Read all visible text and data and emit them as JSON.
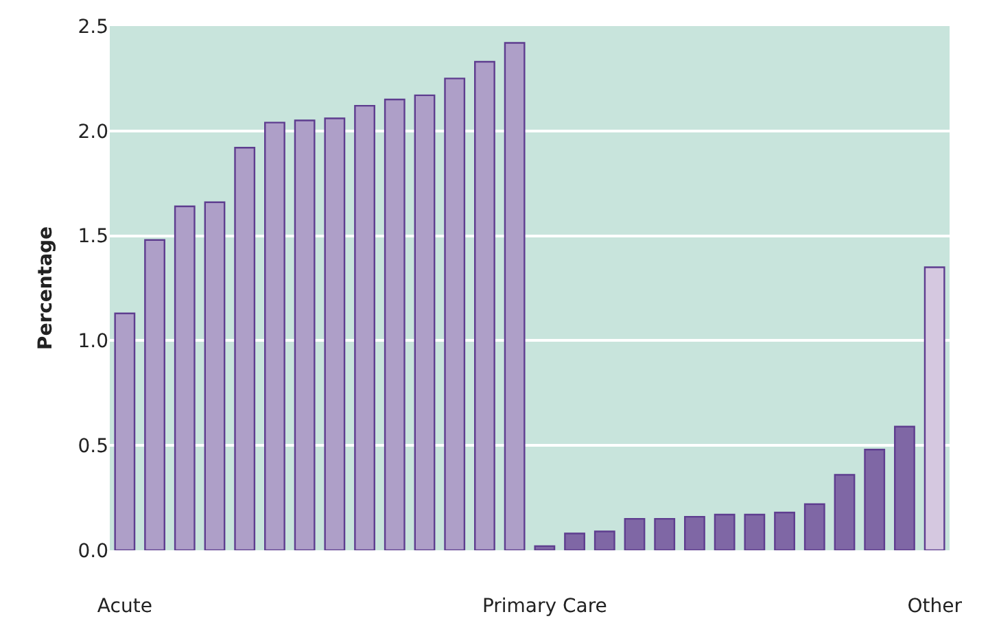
{
  "chart_data": {
    "type": "bar",
    "ylabel": "Percentage",
    "categories": [
      "Acute",
      null,
      null,
      null,
      null,
      null,
      null,
      null,
      null,
      null,
      null,
      null,
      null,
      null,
      "Primary Care",
      null,
      null,
      null,
      null,
      null,
      null,
      null,
      null,
      null,
      null,
      null,
      null,
      "Other"
    ],
    "values": [
      1.13,
      1.48,
      1.64,
      1.66,
      1.92,
      2.04,
      2.05,
      2.06,
      2.12,
      2.15,
      2.17,
      2.25,
      2.33,
      2.42,
      0.02,
      0.08,
      0.09,
      0.15,
      0.15,
      0.16,
      0.17,
      0.17,
      0.18,
      0.22,
      0.36,
      0.48,
      0.59,
      1.35
    ],
    "colors": [
      "#ae9fc8",
      "#ae9fc8",
      "#ae9fc8",
      "#ae9fc8",
      "#ae9fc8",
      "#ae9fc8",
      "#ae9fc8",
      "#ae9fc8",
      "#ae9fc8",
      "#ae9fc8",
      "#ae9fc8",
      "#ae9fc8",
      "#ae9fc8",
      "#ae9fc8",
      "#7f67a5",
      "#7f67a5",
      "#7f67a5",
      "#7f67a5",
      "#7f67a5",
      "#7f67a5",
      "#7f67a5",
      "#7f67a5",
      "#7f67a5",
      "#7f67a5",
      "#7f67a5",
      "#7f67a5",
      "#7f67a5",
      "#d5c8e0"
    ],
    "ylim": [
      0,
      2.5
    ],
    "yticks": [
      {
        "value": 0,
        "label": "0.0"
      },
      0.5,
      {
        "value": 1,
        "label": "1.0"
      },
      1.5,
      {
        "value": 2,
        "label": "2.0"
      },
      2.5
    ],
    "grid": "y"
  }
}
